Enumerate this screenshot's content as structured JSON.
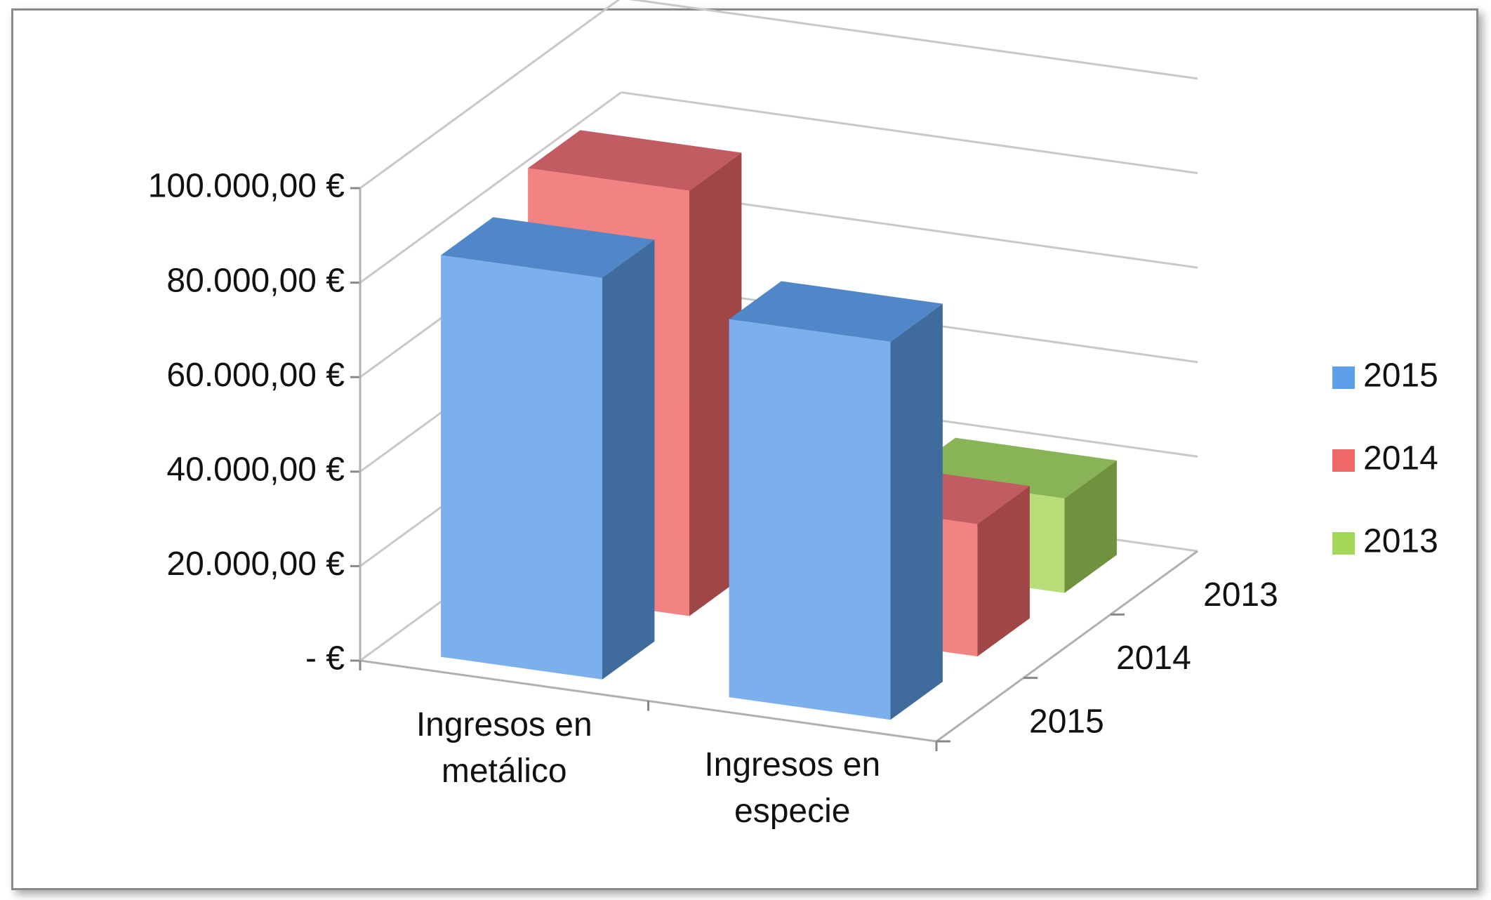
{
  "chart_data": {
    "type": "bar3d",
    "categories": [
      "Ingresos en metálico",
      "Ingresos en especie"
    ],
    "series": [
      {
        "name": "2015",
        "color": "#5e9fe8",
        "values": [
          85000,
          80000
        ]
      },
      {
        "name": "2014",
        "color": "#ee6868",
        "values": [
          90000,
          28000
        ]
      },
      {
        "name": "2013",
        "color": "#a6d65a",
        "values": [
          20000,
          20000
        ]
      }
    ],
    "ylim": [
      0,
      100000
    ],
    "yticks": [
      {
        "value": 0,
        "label": "-   €"
      },
      {
        "value": 20000,
        "label": "20.000,00 €"
      },
      {
        "value": 40000,
        "label": "40.000,00 €"
      },
      {
        "value": 60000,
        "label": "60.000,00 €"
      },
      {
        "value": 80000,
        "label": "80.000,00 €"
      },
      {
        "value": 100000,
        "label": "100.000,00 €"
      }
    ],
    "grid": true,
    "legend": "right"
  }
}
